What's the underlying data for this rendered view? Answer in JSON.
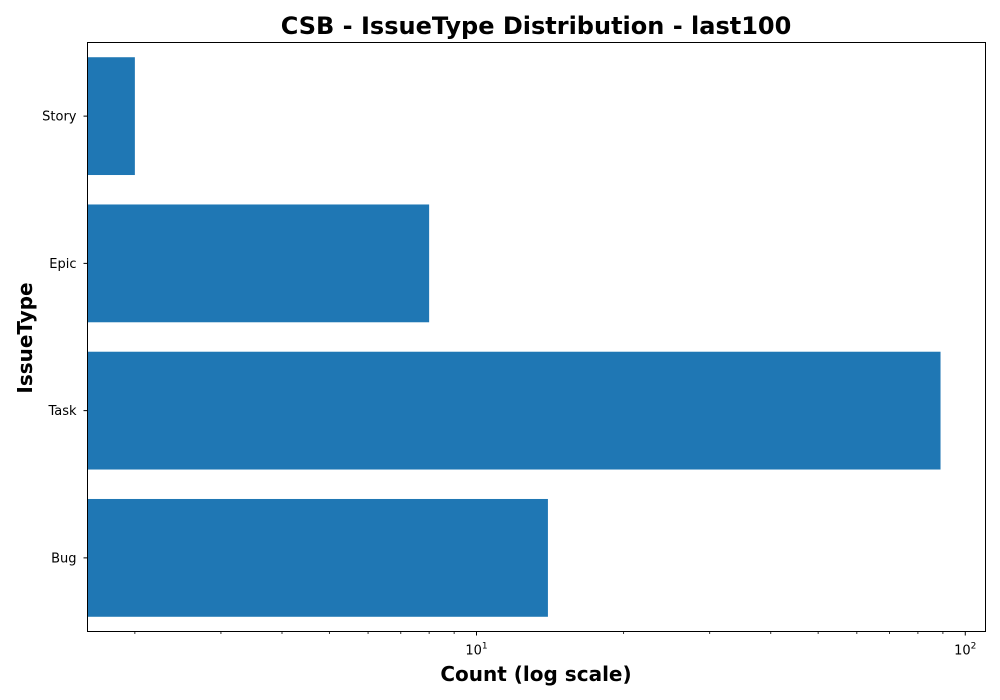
{
  "chart_data": {
    "type": "bar",
    "orientation": "horizontal",
    "title": "CSB - IssueType Distribution - last100",
    "xlabel": "Count (log scale)",
    "ylabel": "IssueType",
    "x_scale": "log",
    "xlim": [
      1.6,
      110
    ],
    "x_ticks": [
      {
        "base": "10",
        "exp": "1",
        "value": 10
      },
      {
        "base": "10",
        "exp": "2",
        "value": 100
      }
    ],
    "categories": [
      "Bug",
      "Task",
      "Epic",
      "Story"
    ],
    "values": [
      14,
      89,
      8,
      2
    ],
    "bar_color": "#1f77b4",
    "grid": false,
    "legend": "none"
  }
}
